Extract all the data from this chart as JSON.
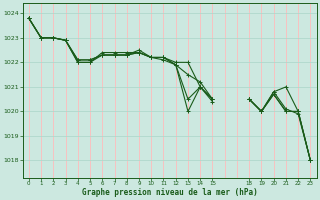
{
  "title": "Graphe pression niveau de la mer (hPa)",
  "background_color": "#cce8e0",
  "grid_color_v": "#ffbbbb",
  "grid_color_h": "#b0d8cc",
  "line_color": "#1a5c1a",
  "xlim": [
    -0.5,
    23.5
  ],
  "ylim": [
    1017.3,
    1024.4
  ],
  "yticks": [
    1018,
    1019,
    1020,
    1021,
    1022,
    1023,
    1024
  ],
  "xtick_positions": [
    0,
    1,
    2,
    3,
    4,
    5,
    6,
    7,
    8,
    9,
    10,
    11,
    12,
    13,
    14,
    15,
    18,
    19,
    20,
    21,
    22,
    23
  ],
  "xtick_labels": [
    "0",
    "1",
    "2",
    "3",
    "4",
    "5",
    "6",
    "7",
    "8",
    "9",
    "10",
    "11",
    "12",
    "13",
    "14",
    "15",
    "18",
    "19",
    "20",
    "21",
    "22",
    "23"
  ],
  "series": [
    [
      1023.8,
      1023.0,
      1023.0,
      1022.9,
      1022.0,
      1022.0,
      1022.3,
      1022.3,
      1022.3,
      1022.5,
      1022.2,
      1022.2,
      1021.9,
      1020.0,
      1021.0,
      1020.5,
      null,
      null,
      1020.5,
      1020.0,
      1020.8,
      1021.0,
      1020.0,
      1018.0
    ],
    [
      1023.8,
      1023.0,
      1023.0,
      1022.9,
      1022.1,
      1022.1,
      1022.3,
      1022.3,
      1022.3,
      1022.4,
      1022.2,
      1022.2,
      1021.9,
      1021.5,
      1021.2,
      1020.5,
      null,
      null,
      1020.5,
      1020.0,
      1020.7,
      1020.0,
      1020.0,
      1018.0
    ],
    [
      1023.8,
      1023.0,
      1023.0,
      1022.9,
      1022.1,
      1022.1,
      1022.3,
      1022.3,
      1022.3,
      1022.4,
      1022.2,
      1022.1,
      1021.9,
      1020.5,
      1021.0,
      1020.4,
      null,
      null,
      1020.5,
      1020.0,
      1020.8,
      1020.1,
      1019.9,
      1018.0
    ],
    [
      1023.8,
      1023.0,
      1023.0,
      1022.9,
      1022.0,
      1022.0,
      1022.4,
      1022.4,
      1022.4,
      1022.4,
      1022.2,
      1022.2,
      1022.0,
      1022.0,
      1021.0,
      1020.5,
      null,
      null,
      1020.5,
      1020.0,
      1020.7,
      1020.0,
      1020.0,
      1018.0
    ]
  ]
}
